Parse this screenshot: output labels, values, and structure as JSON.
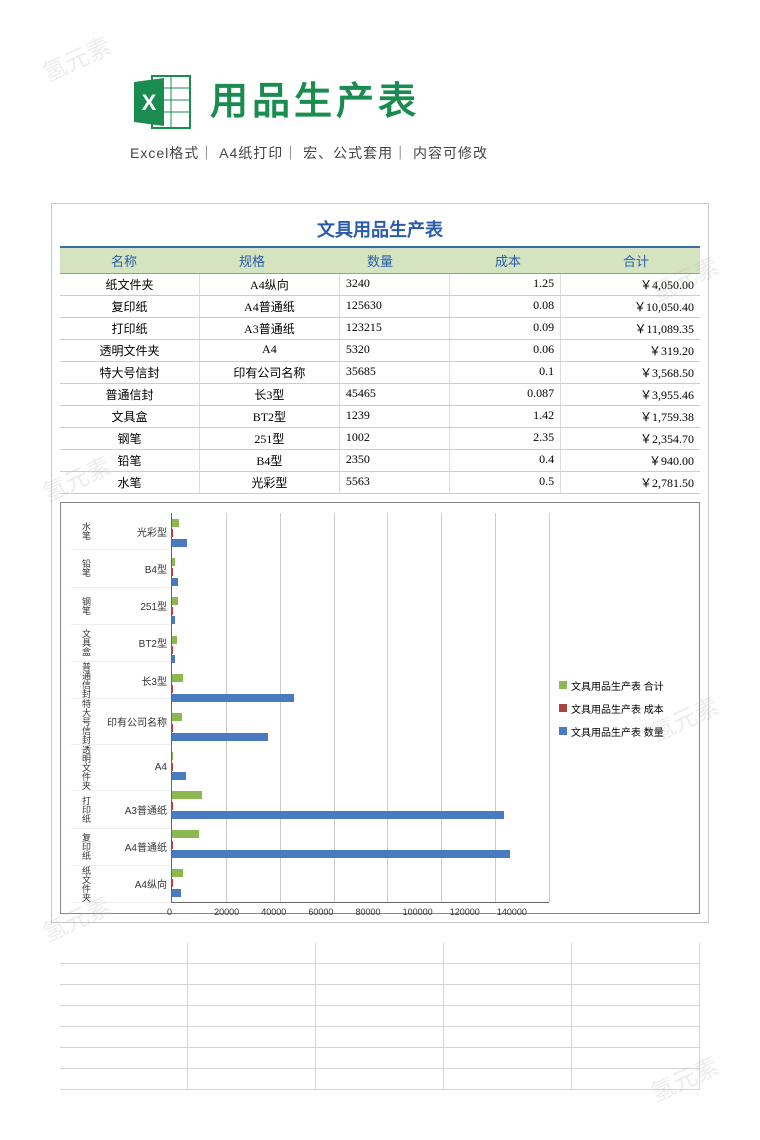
{
  "header": {
    "title": "用品生产表",
    "subtitle": "Excel格式｜ A4纸打印｜ 宏、公式套用｜ 内容可修改",
    "icon_color": "#1a8c50"
  },
  "sheet": {
    "title": "文具用品生产表",
    "columns": [
      "名称",
      "规格",
      "数量",
      "成本",
      "合计"
    ],
    "rows": [
      {
        "name": "纸文件夹",
        "spec": "A4纵向",
        "qty": "3240",
        "cost": "1.25",
        "total": "￥4,050.00"
      },
      {
        "name": "复印纸",
        "spec": "A4普通纸",
        "qty": "125630",
        "cost": "0.08",
        "total": "￥10,050.40"
      },
      {
        "name": "打印纸",
        "spec": "A3普通纸",
        "qty": "123215",
        "cost": "0.09",
        "total": "￥11,089.35"
      },
      {
        "name": "透明文件夹",
        "spec": "A4",
        "qty": "5320",
        "cost": "0.06",
        "total": "￥319.20"
      },
      {
        "name": "特大号信封",
        "spec": "印有公司名称",
        "qty": "35685",
        "cost": "0.1",
        "total": "￥3,568.50"
      },
      {
        "name": "普通信封",
        "spec": "长3型",
        "qty": "45465",
        "cost": "0.087",
        "total": "￥3,955.46"
      },
      {
        "name": "文具盒",
        "spec": "BT2型",
        "qty": "1239",
        "cost": "1.42",
        "total": "￥1,759.38"
      },
      {
        "name": "钢笔",
        "spec": "251型",
        "qty": "1002",
        "cost": "2.35",
        "total": "￥2,354.70"
      },
      {
        "name": "铅笔",
        "spec": "B4型",
        "qty": "2350",
        "cost": "0.4",
        "total": "￥940.00"
      },
      {
        "name": "水笔",
        "spec": "光彩型",
        "qty": "5563",
        "cost": "0.5",
        "total": "￥2,781.50"
      }
    ]
  },
  "chart": {
    "type": "horizontal_bar",
    "x_max": 140000,
    "x_ticks": [
      "0",
      "20000",
      "40000",
      "60000",
      "80000",
      "100000",
      "120000",
      "140000"
    ],
    "colors": {
      "total": "#8bb850",
      "cost": "#b04040",
      "qty": "#4a7bc0"
    },
    "legend": [
      {
        "label": "文具用品生产表 合计",
        "color": "#8bb850"
      },
      {
        "label": "文具用品生产表 成本",
        "color": "#b04040"
      },
      {
        "label": "文具用品生产表 数量",
        "color": "#4a7bc0"
      }
    ],
    "categories": [
      {
        "cat": "水笔",
        "spec": "光彩型",
        "qty": 5563,
        "total": 2781
      },
      {
        "cat": "铅笔",
        "spec": "B4型",
        "qty": 2350,
        "total": 940
      },
      {
        "cat": "钢笔",
        "spec": "251型",
        "qty": 1002,
        "total": 2354
      },
      {
        "cat": "文具盒",
        "spec": "BT2型",
        "qty": 1239,
        "total": 1759
      },
      {
        "cat": "普通信封",
        "spec": "长3型",
        "qty": 45465,
        "total": 3955
      },
      {
        "cat": "特大号信封",
        "spec": "印有公司名称",
        "qty": 35685,
        "total": 3568
      },
      {
        "cat": "透明文件夹",
        "spec": "A4",
        "qty": 5320,
        "total": 319
      },
      {
        "cat": "打印纸",
        "spec": "A3普通纸",
        "qty": 123215,
        "total": 11089
      },
      {
        "cat": "复印纸",
        "spec": "A4普通纸",
        "qty": 125630,
        "total": 10050
      },
      {
        "cat": "纸文件夹",
        "spec": "A4纵向",
        "qty": 3240,
        "total": 4050
      }
    ]
  },
  "watermark": "氢元素"
}
